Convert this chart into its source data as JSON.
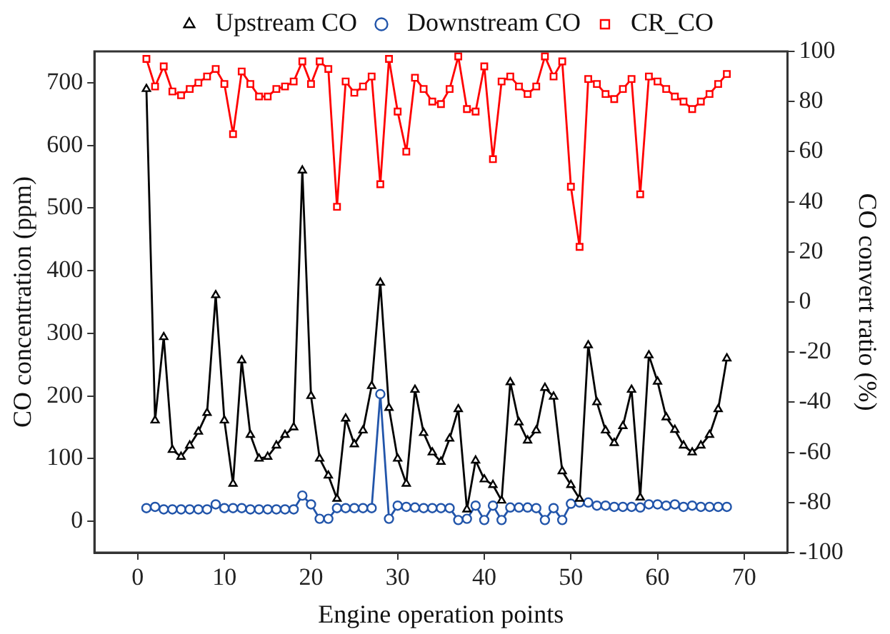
{
  "chart_data": {
    "type": "line",
    "xlabel": "Engine operation points",
    "ylabel": "CO concentration (ppm)",
    "y2label": "CO convert ratio (%)",
    "x": [
      1,
      2,
      3,
      4,
      5,
      6,
      7,
      8,
      9,
      10,
      11,
      12,
      13,
      14,
      15,
      16,
      17,
      18,
      19,
      20,
      21,
      22,
      23,
      24,
      25,
      26,
      27,
      28,
      29,
      30,
      31,
      32,
      33,
      34,
      35,
      36,
      37,
      38,
      39,
      40,
      41,
      42,
      43,
      44,
      45,
      46,
      47,
      48,
      49,
      50,
      51,
      52,
      53,
      54,
      55,
      56,
      57,
      58,
      59,
      60,
      61,
      62,
      63,
      64,
      65,
      66,
      67,
      68
    ],
    "xlim": [
      -5,
      75
    ],
    "xticks": [
      0,
      10,
      20,
      30,
      40,
      50,
      60,
      70
    ],
    "ylim": [
      -50,
      750
    ],
    "yticks": [
      0,
      100,
      200,
      300,
      400,
      500,
      600,
      700
    ],
    "y2lim": [
      -100,
      100
    ],
    "y2ticks": [
      -100,
      -80,
      -60,
      -40,
      -20,
      0,
      20,
      40,
      60,
      80,
      100
    ],
    "grid": false,
    "legend": "top",
    "line_style": "solid",
    "series": [
      {
        "name": "Upstream CO",
        "color": "#000000",
        "marker": "triangle",
        "values": [
          690,
          161,
          294,
          114,
          103,
          121,
          143,
          173,
          361,
          161,
          60,
          257,
          138,
          100,
          103,
          121,
          138,
          150,
          560,
          200,
          100,
          73,
          36,
          164,
          123,
          145,
          216,
          381,
          181,
          100,
          60,
          210,
          141,
          110,
          95,
          132,
          179,
          19,
          97,
          67,
          58,
          33,
          222,
          158,
          129,
          145,
          213,
          199,
          80,
          58,
          36,
          281,
          190,
          145,
          125,
          152,
          210,
          38,
          265,
          223,
          166,
          146,
          121,
          110,
          121,
          138,
          179,
          260
        ]
      },
      {
        "name": "Downstream CO",
        "color": "#2255aa",
        "marker": "circle",
        "values": [
          21,
          23,
          19,
          19,
          19,
          19,
          19,
          19,
          27,
          21,
          21,
          21,
          19,
          19,
          19,
          19,
          19,
          19,
          41,
          27,
          4,
          4,
          21,
          21,
          21,
          21,
          21,
          203,
          4,
          25,
          23,
          22,
          21,
          21,
          21,
          21,
          2,
          4,
          25,
          2,
          25,
          2,
          22,
          22,
          22,
          21,
          2,
          21,
          2,
          28,
          30,
          30,
          25,
          25,
          23,
          23,
          23,
          22,
          27,
          27,
          25,
          27,
          23,
          25,
          23,
          23,
          23,
          23
        ]
      },
      {
        "name": "CR_CO",
        "color": "#ff0000",
        "marker": "square",
        "axis": "y2",
        "values": [
          97,
          86,
          94,
          84,
          82.5,
          85,
          87.5,
          90,
          93,
          87,
          67,
          92,
          87,
          82,
          82,
          85,
          86,
          88,
          96,
          87,
          96,
          93,
          38,
          88,
          83.5,
          86,
          90,
          47,
          97,
          76,
          60,
          89.5,
          85,
          80,
          79,
          85,
          98,
          77,
          76,
          94,
          57,
          88,
          90,
          86,
          83,
          86,
          98,
          90,
          96,
          46,
          22,
          89,
          87,
          83,
          81,
          85,
          89,
          43,
          90,
          88,
          85,
          82,
          80,
          77,
          80,
          83,
          87,
          91
        ]
      }
    ]
  }
}
